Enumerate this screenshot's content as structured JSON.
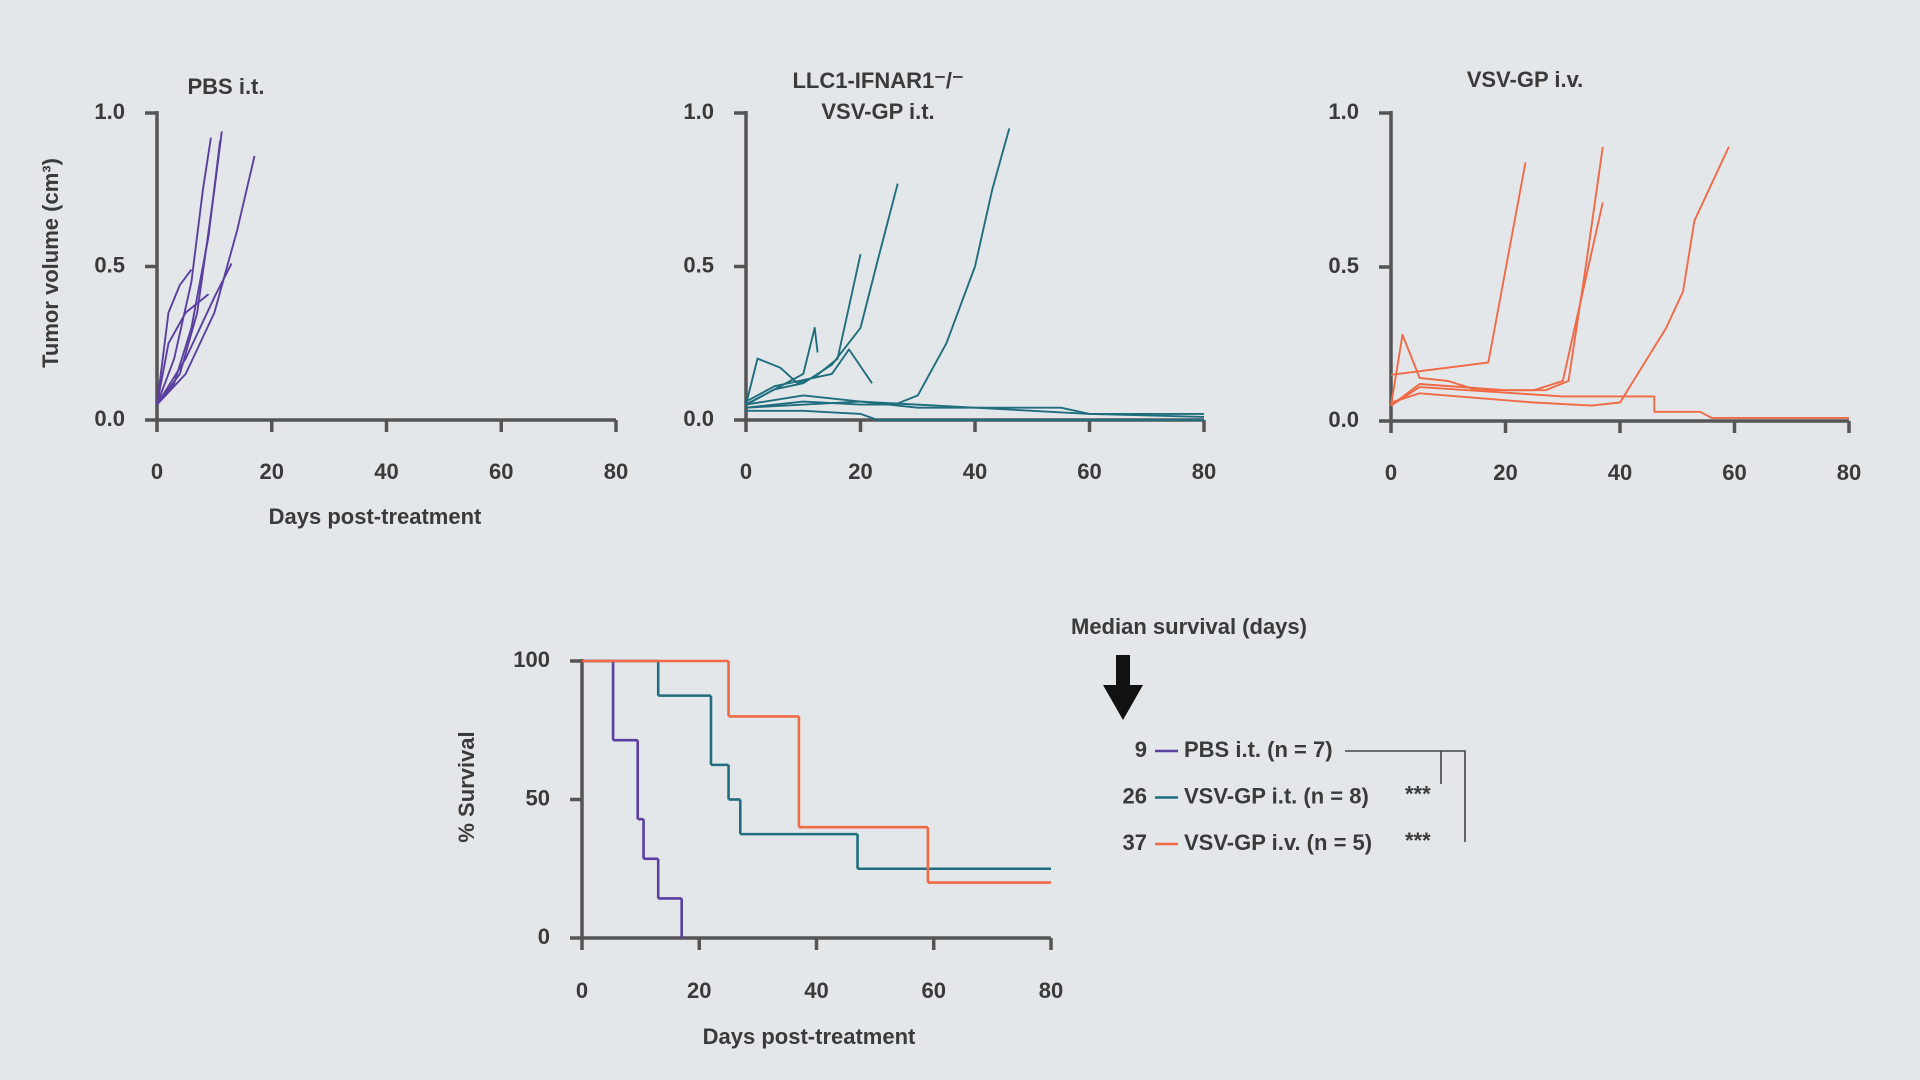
{
  "chart_data": [
    {
      "type": "line",
      "title": [
        "PBS i.t."
      ],
      "x_label": "Days post-treatment",
      "y_label": "Tumor volume (cm³)",
      "color": "#5b3fa0",
      "xlim": [
        0,
        80
      ],
      "xticks": [
        0,
        20,
        40,
        60,
        80
      ],
      "ylim": [
        0,
        1
      ],
      "yticks": [
        {
          "value": 0,
          "label": "0.0"
        },
        {
          "value": 0.5,
          "label": "0.5"
        },
        {
          "value": 1,
          "label": "1.0"
        }
      ],
      "series": [
        {
          "x": [
            0,
            3,
            6,
            8,
            9.4
          ],
          "values": [
            0.05,
            0.2,
            0.45,
            0.75,
            0.92
          ]
        },
        {
          "x": [
            0,
            4,
            7,
            10,
            11.3
          ],
          "values": [
            0.05,
            0.15,
            0.35,
            0.75,
            0.94
          ]
        },
        {
          "x": [
            0,
            3,
            6,
            9,
            11
          ],
          "values": [
            0.05,
            0.12,
            0.3,
            0.6,
            0.91
          ]
        },
        {
          "x": [
            0,
            5,
            10,
            14,
            17
          ],
          "values": [
            0.05,
            0.15,
            0.35,
            0.62,
            0.86
          ]
        },
        {
          "x": [
            0,
            5,
            10,
            13
          ],
          "values": [
            0.05,
            0.2,
            0.4,
            0.51
          ]
        },
        {
          "x": [
            0,
            2,
            4,
            6
          ],
          "values": [
            0.05,
            0.35,
            0.44,
            0.49
          ]
        },
        {
          "x": [
            0,
            2,
            5,
            9
          ],
          "values": [
            0.05,
            0.25,
            0.35,
            0.41
          ]
        }
      ]
    },
    {
      "type": "line",
      "title": [
        "LLC1-IFNAR1⁻/⁻",
        "VSV-GP i.t."
      ],
      "color": "#1f6e7e",
      "xlim": [
        0,
        80
      ],
      "xticks": [
        0,
        20,
        40,
        60,
        80
      ],
      "ylim": [
        0,
        1
      ],
      "yticks": [
        {
          "value": 0,
          "label": "0.0"
        },
        {
          "value": 0.5,
          "label": "0.5"
        },
        {
          "value": 1,
          "label": "1.0"
        }
      ],
      "series": [
        {
          "x": [
            0,
            10,
            20,
            26,
            30,
            35,
            40,
            43,
            46
          ],
          "values": [
            0.04,
            0.06,
            0.05,
            0.05,
            0.08,
            0.25,
            0.5,
            0.75,
            0.95
          ]
        },
        {
          "x": [
            0,
            5,
            10,
            15,
            20,
            23,
            26.5
          ],
          "values": [
            0.05,
            0.1,
            0.12,
            0.18,
            0.3,
            0.52,
            0.77
          ]
        },
        {
          "x": [
            0,
            2,
            6,
            9,
            12,
            16,
            20
          ],
          "values": [
            0.05,
            0.2,
            0.17,
            0.12,
            0.14,
            0.2,
            0.54
          ]
        },
        {
          "x": [
            0,
            5,
            10,
            12,
            12.5
          ],
          "values": [
            0.05,
            0.1,
            0.15,
            0.3,
            0.22
          ]
        },
        {
          "x": [
            0,
            5,
            10,
            15,
            18,
            22
          ],
          "values": [
            0.06,
            0.11,
            0.13,
            0.15,
            0.23,
            0.12
          ]
        },
        {
          "x": [
            0,
            10,
            20,
            40,
            60,
            80
          ],
          "values": [
            0.05,
            0.08,
            0.06,
            0.04,
            0.02,
            0.02
          ]
        },
        {
          "x": [
            0,
            20,
            30,
            55,
            60,
            80
          ],
          "values": [
            0.04,
            0.06,
            0.04,
            0.04,
            0.02,
            0.01
          ]
        },
        {
          "x": [
            0,
            10,
            20,
            23,
            80
          ],
          "values": [
            0.03,
            0.03,
            0.02,
            0,
            0
          ]
        }
      ]
    },
    {
      "type": "line",
      "title": [
        "VSV-GP i.v."
      ],
      "color": "#ef6a45",
      "xlim": [
        0,
        80
      ],
      "xticks": [
        0,
        20,
        40,
        60,
        80
      ],
      "ylim": [
        0,
        1
      ],
      "yticks": [
        {
          "value": 0,
          "label": "0.0"
        },
        {
          "value": 0.5,
          "label": "0.5"
        },
        {
          "value": 1,
          "label": "1.0"
        }
      ],
      "series": [
        {
          "x": [
            0,
            17,
            23.5
          ],
          "values": [
            0.15,
            0.19,
            0.84
          ]
        },
        {
          "x": [
            0,
            2,
            5,
            10,
            15,
            25,
            30,
            37
          ],
          "values": [
            0.05,
            0.28,
            0.14,
            0.13,
            0.1,
            0.1,
            0.13,
            0.71
          ]
        },
        {
          "x": [
            0,
            5,
            20,
            27,
            31,
            34,
            37
          ],
          "values": [
            0.05,
            0.12,
            0.1,
            0.1,
            0.13,
            0.5,
            0.89
          ]
        },
        {
          "x": [
            0,
            5,
            25,
            35,
            40,
            48,
            51,
            53,
            59
          ],
          "values": [
            0.06,
            0.09,
            0.06,
            0.05,
            0.06,
            0.3,
            0.42,
            0.65,
            0.89
          ]
        },
        {
          "x": [
            0,
            5,
            30,
            46,
            46,
            54,
            56,
            80
          ],
          "values": [
            0.05,
            0.11,
            0.08,
            0.08,
            0.03,
            0.03,
            0.01,
            0.01
          ]
        }
      ]
    },
    {
      "type": "step",
      "x_label": "Days post-treatment",
      "y_label": "% Survival",
      "legend_title": "Median survival (days)",
      "xlim": [
        0,
        80
      ],
      "xticks": [
        0,
        20,
        40,
        60,
        80
      ],
      "ylim": [
        0,
        100
      ],
      "yticks": [
        0,
        50,
        100
      ],
      "series": [
        {
          "name": "PBS i.t. (n = 7)",
          "color": "#5b3fa0",
          "median": 9,
          "x": [
            0,
            5.3,
            9.5,
            10.5,
            13,
            17
          ],
          "values": [
            100,
            71.4,
            42.9,
            28.6,
            14.3,
            0
          ]
        },
        {
          "name": "VSV-GP i.t. (n = 8)",
          "color": "#1f6e7e",
          "median": 26,
          "significance": "***",
          "x": [
            0,
            13,
            22,
            25,
            27,
            47,
            80
          ],
          "values": [
            100,
            87.5,
            62.5,
            50,
            37.5,
            25,
            25
          ]
        },
        {
          "name": "VSV-GP i.v. (n = 5)",
          "color": "#ef6a45",
          "median": 37,
          "significance": "***",
          "x": [
            0,
            25,
            37,
            59,
            80
          ],
          "values": [
            100,
            80,
            40,
            20,
            20
          ]
        }
      ]
    }
  ]
}
